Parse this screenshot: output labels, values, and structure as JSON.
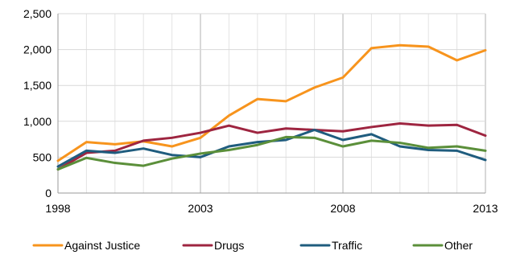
{
  "chart_data": {
    "type": "line",
    "title": "",
    "xlabel": "",
    "ylabel": "",
    "x": [
      1998,
      1999,
      2000,
      2001,
      2002,
      2003,
      2004,
      2005,
      2006,
      2007,
      2008,
      2009,
      2010,
      2011,
      2012,
      2013
    ],
    "xlim": [
      1998,
      2013
    ],
    "ylim": [
      0,
      2500
    ],
    "x_ticks": [
      1998,
      2003,
      2008,
      2013
    ],
    "x_tick_labels": [
      "1998",
      "2003",
      "2008",
      "2013"
    ],
    "y_ticks": [
      0,
      500,
      1000,
      1500,
      2000,
      2500
    ],
    "y_tick_labels": [
      "0",
      "500",
      "1,000",
      "1,500",
      "2,000",
      "2,500"
    ],
    "grid": true,
    "legend_position": "bottom",
    "series": [
      {
        "name": "Against Justice",
        "color": "#F7941D",
        "values": [
          450,
          710,
          680,
          720,
          650,
          770,
          1080,
          1310,
          1280,
          1470,
          1610,
          2020,
          2060,
          2040,
          1850,
          1990
        ]
      },
      {
        "name": "Drugs",
        "color": "#9E2540",
        "values": [
          330,
          560,
          590,
          730,
          770,
          840,
          940,
          840,
          900,
          880,
          860,
          920,
          970,
          940,
          950,
          800
        ]
      },
      {
        "name": "Traffic",
        "color": "#1F5C7E",
        "values": [
          370,
          590,
          560,
          620,
          530,
          500,
          650,
          710,
          740,
          880,
          740,
          820,
          650,
          600,
          590,
          460
        ]
      },
      {
        "name": "Other",
        "color": "#5B8F3A",
        "values": [
          330,
          490,
          420,
          380,
          480,
          550,
          600,
          670,
          780,
          770,
          650,
          730,
          700,
          630,
          650,
          590
        ]
      }
    ]
  }
}
